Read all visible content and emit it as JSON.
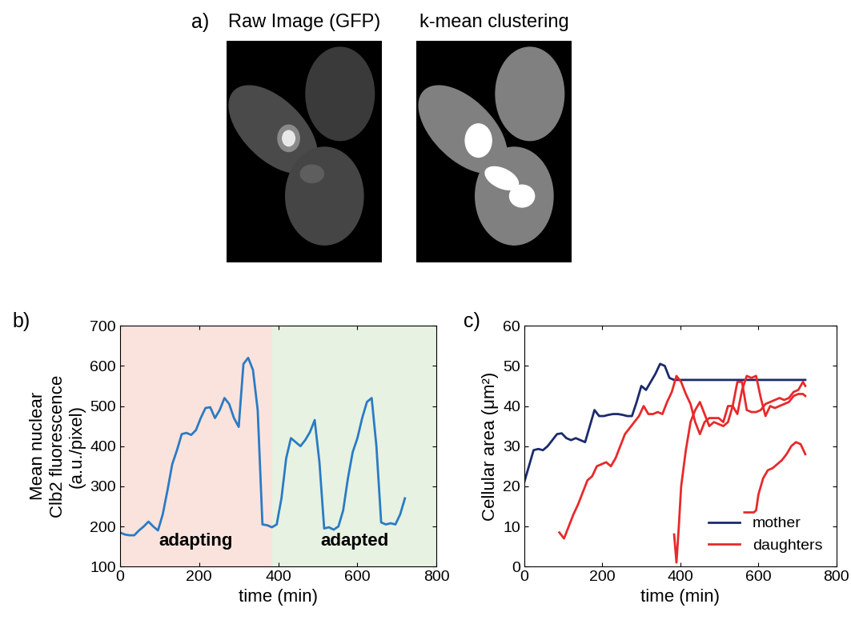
{
  "chart_data": [
    {
      "type": "image",
      "panel": "a)",
      "images": [
        {
          "title": "Raw Image (GFP)"
        },
        {
          "title": "k-mean clustering"
        }
      ]
    },
    {
      "type": "line",
      "panel": "b)",
      "x_label": "time (min)",
      "y_label": "Mean nuclear\nClb2 fluorescence\n(a.u./pixel)",
      "xlim": [
        0,
        800
      ],
      "xticks": [
        0,
        200,
        400,
        600,
        800
      ],
      "ylim": [
        100,
        700
      ],
      "yticks": [
        100,
        200,
        300,
        400,
        500,
        600,
        700
      ],
      "regions": [
        {
          "label": "adapting",
          "start": 0,
          "end": 385,
          "color": "#fbe3dd"
        },
        {
          "label": "adapted",
          "start": 385,
          "end": 800,
          "color": "#e7f2e2"
        }
      ],
      "series": [
        {
          "color": "#2a7bc4",
          "x": [
            0,
            12,
            24,
            36,
            48,
            60,
            72,
            84,
            96,
            108,
            120,
            132,
            144,
            156,
            168,
            180,
            192,
            204,
            216,
            228,
            240,
            252,
            264,
            276,
            288,
            300,
            312,
            324,
            336,
            348,
            360,
            372,
            384,
            396,
            408,
            420,
            432,
            444,
            456,
            468,
            480,
            492,
            504,
            516,
            528,
            540,
            552,
            564,
            576,
            588,
            600,
            612,
            624,
            636,
            648,
            660,
            672,
            684,
            696,
            708,
            720
          ],
          "values": [
            185,
            180,
            178,
            178,
            190,
            200,
            212,
            200,
            190,
            230,
            290,
            355,
            390,
            430,
            433,
            428,
            440,
            470,
            495,
            497,
            470,
            490,
            520,
            505,
            470,
            448,
            605,
            620,
            590,
            490,
            205,
            203,
            198,
            205,
            270,
            370,
            420,
            410,
            400,
            415,
            435,
            465,
            360,
            195,
            198,
            192,
            200,
            240,
            320,
            385,
            420,
            470,
            510,
            520,
            400,
            210,
            205,
            208,
            205,
            230,
            270
          ]
        }
      ]
    },
    {
      "type": "line",
      "panel": "c)",
      "x_label": "time (min)",
      "y_label": "Cellular area (μm²)",
      "xlim": [
        0,
        800
      ],
      "xticks": [
        0,
        200,
        400,
        600,
        800
      ],
      "ylim": [
        0,
        60
      ],
      "yticks": [
        0,
        10,
        20,
        30,
        40,
        50,
        60
      ],
      "legend": "lower right",
      "series": [
        {
          "name": "mother",
          "color": "#1b2a6b",
          "x": [
            0,
            12,
            24,
            36,
            48,
            60,
            72,
            84,
            96,
            108,
            120,
            132,
            144,
            156,
            168,
            180,
            192,
            204,
            216,
            228,
            240,
            252,
            264,
            276,
            288,
            300,
            312,
            324,
            336,
            348,
            360,
            372,
            384,
            720
          ],
          "values": [
            21,
            25,
            29,
            29.3,
            29,
            30,
            31.5,
            33,
            33.2,
            32,
            31.5,
            32,
            31.5,
            31,
            35,
            39,
            37.5,
            37.5,
            37.8,
            38,
            38,
            37.8,
            37.5,
            37.5,
            41,
            45,
            44,
            46,
            48,
            50.5,
            50,
            47,
            46.5,
            46.5
          ]
        },
        {
          "name": "daughters",
          "color": "#e8292b",
          "x": [
            90,
            102,
            114,
            126,
            138,
            150,
            162,
            174,
            186,
            198,
            210,
            222,
            234,
            246,
            258,
            270,
            282,
            294,
            306,
            318,
            330,
            342,
            354,
            366,
            378,
            390,
            402,
            414,
            426,
            438,
            450,
            462,
            474,
            486,
            498,
            510,
            522,
            534,
            546,
            558,
            570,
            582,
            594,
            606,
            618,
            630,
            642,
            654,
            666,
            678,
            690,
            702,
            714,
            720
          ],
          "values": [
            8.5,
            7,
            10,
            13,
            15.5,
            18.5,
            21.5,
            22.5,
            25,
            25.5,
            26,
            25,
            27,
            30,
            33,
            34.5,
            36,
            37.5,
            40,
            38,
            38,
            38.5,
            38,
            41,
            43.5,
            47.5,
            46,
            43,
            40.5,
            36,
            33,
            36,
            37,
            37,
            37,
            36,
            40,
            40,
            38,
            44,
            47.5,
            47,
            47.5,
            42,
            37.5,
            40,
            39.5,
            40,
            40.5,
            41,
            42.5,
            43,
            43,
            42.5
          ]
        },
        {
          "name": "daughters",
          "color": "#e8292b",
          "x": [
            384,
            390,
            396,
            402,
            414,
            426,
            438,
            450,
            462,
            474,
            486,
            498,
            510,
            522,
            534,
            546,
            558,
            570,
            582,
            594,
            606,
            618,
            630,
            642,
            654,
            666,
            678,
            690,
            702,
            714,
            720
          ],
          "values": [
            8,
            1,
            10,
            20,
            29,
            36,
            39,
            41,
            38,
            35,
            36,
            35.5,
            35,
            36,
            40,
            46,
            46,
            39,
            38.5,
            38.5,
            39,
            40.5,
            41,
            41.5,
            42,
            41.5,
            42,
            43.5,
            44,
            46,
            45
          ]
        },
        {
          "name": "daughters",
          "color": "#e8292b",
          "x": [
            564,
            576,
            588,
            594,
            600,
            612,
            624,
            636,
            648,
            660,
            672,
            684,
            696,
            708,
            720
          ],
          "values": [
            13.5,
            13.5,
            13.5,
            14,
            18,
            22,
            24,
            24.5,
            25.5,
            26.5,
            28,
            30,
            31,
            30.5,
            28
          ]
        }
      ]
    }
  ]
}
